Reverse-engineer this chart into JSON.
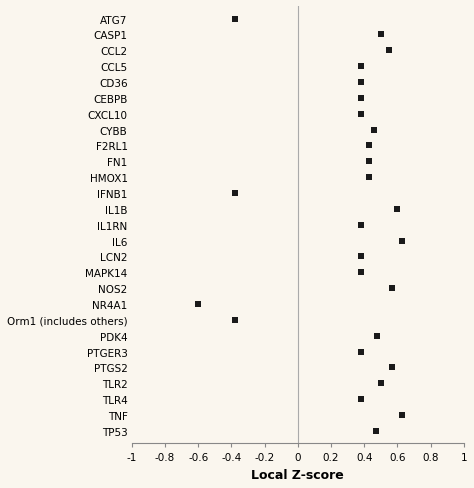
{
  "genes": [
    "ATG7",
    "CASP1",
    "CCL2",
    "CCL5",
    "CD36",
    "CEBPB",
    "CXCL10",
    "CYBB",
    "F2RL1",
    "FN1",
    "HMOX1",
    "IFNB1",
    "IL1B",
    "IL1RN",
    "IL6",
    "LCN2",
    "MAPK14",
    "NOS2",
    "NR4A1",
    "Orm1 (includes others)",
    "PDK4",
    "PTGER3",
    "PTGS2",
    "TLR2",
    "TLR4",
    "TNF",
    "TP53"
  ],
  "values": [
    -0.38,
    0.5,
    0.55,
    0.38,
    0.38,
    0.38,
    0.38,
    0.46,
    0.43,
    0.43,
    0.43,
    -0.38,
    0.6,
    0.38,
    0.63,
    0.38,
    0.38,
    0.57,
    -0.6,
    -0.38,
    0.48,
    0.38,
    0.57,
    0.5,
    0.38,
    0.63,
    0.47
  ],
  "xlim": [
    -1,
    1
  ],
  "xlabel": "Local Z-score",
  "xticks": [
    -1,
    -0.8,
    -0.6,
    -0.4,
    -0.2,
    0,
    0.2,
    0.4,
    0.6,
    0.8,
    1
  ],
  "xtick_labels": [
    "-1",
    "-0.8",
    "-0.6",
    "-0.4",
    "-0.2",
    "0",
    "0.2",
    "0.4",
    "0.6",
    "0.8",
    "1"
  ],
  "marker_color": "#1a1a1a",
  "marker_size": 5,
  "background_color": "#faf6ee",
  "spine_color": "#888888",
  "tick_label_fontsize": 7.5,
  "xlabel_fontsize": 9,
  "gene_label_fontsize": 7.5,
  "vline_color": "#aaaaaa",
  "vline_lw": 0.8
}
